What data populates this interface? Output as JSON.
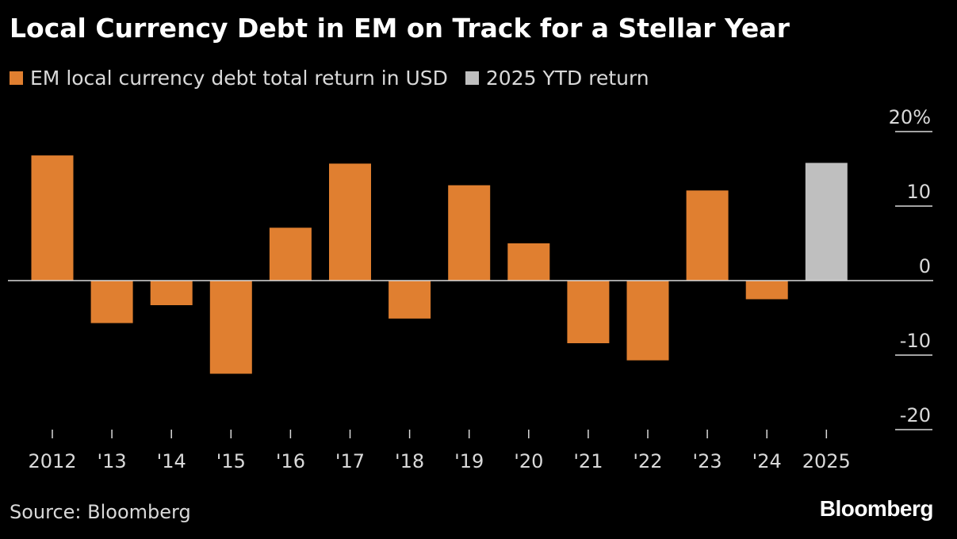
{
  "title": "Local Currency Debt in EM on Track for a Stellar Year",
  "legend": [
    {
      "label": "EM local currency debt total return in USD",
      "color": "#e07f30"
    },
    {
      "label": "2025 YTD return",
      "color": "#bfbfbf"
    }
  ],
  "source": "Source: Bloomberg",
  "logo": "Bloomberg",
  "chart_data": {
    "type": "bar",
    "categories": [
      "2012",
      "'13",
      "'14",
      "'15",
      "'16",
      "'17",
      "'18",
      "'19",
      "'20",
      "'21",
      "'22",
      "'23",
      "'24",
      "2025"
    ],
    "values": [
      16.8,
      -5.7,
      -3.3,
      -12.5,
      7.1,
      15.7,
      -5.1,
      12.8,
      5.0,
      -8.4,
      -10.7,
      12.1,
      -2.5,
      15.8
    ],
    "colors": [
      "#e07f30",
      "#e07f30",
      "#e07f30",
      "#e07f30",
      "#e07f30",
      "#e07f30",
      "#e07f30",
      "#e07f30",
      "#e07f30",
      "#e07f30",
      "#e07f30",
      "#e07f30",
      "#e07f30",
      "#bfbfbf"
    ],
    "y_ticks": [
      20,
      10,
      0,
      -10,
      -20
    ],
    "y_tick_labels": [
      "20%",
      "10",
      "0",
      "-10",
      "-20"
    ],
    "ylim": [
      -20,
      20
    ],
    "axis_position": "right",
    "grid": false
  }
}
